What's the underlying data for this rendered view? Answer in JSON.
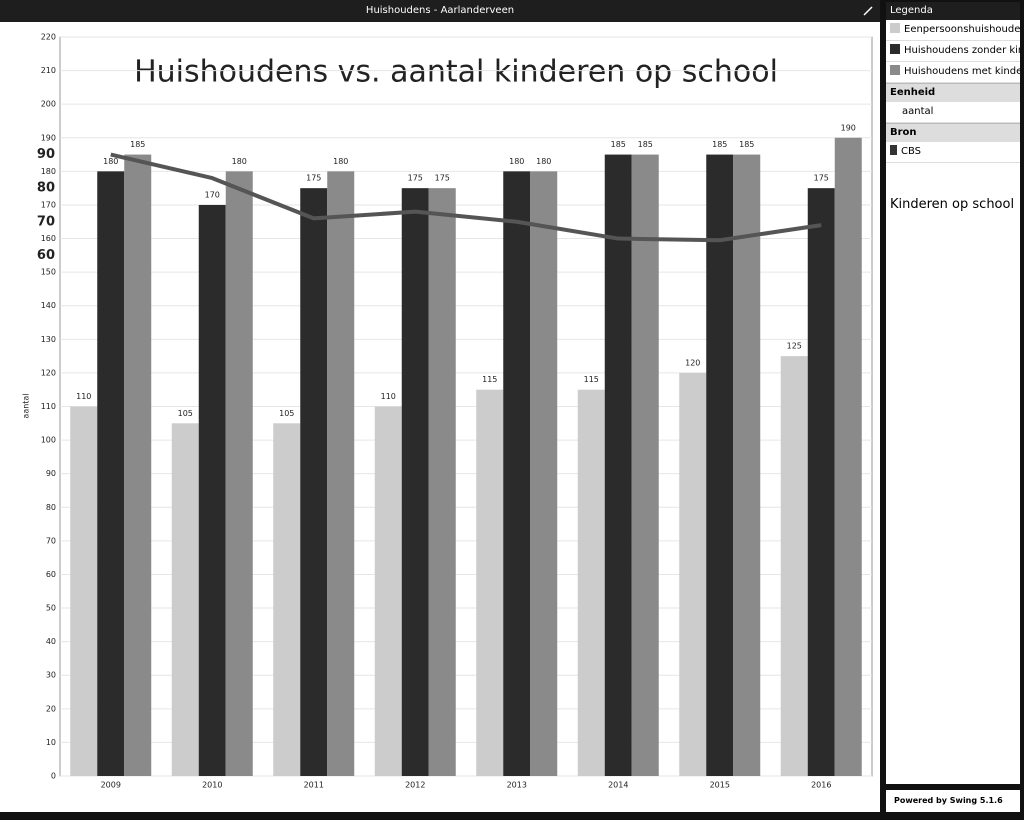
{
  "window": {
    "title": "Huishoudens - Aarlanderveen"
  },
  "chart_data": {
    "type": "bar",
    "title": "Huishoudens vs. aantal kinderen op school",
    "y_label": "aantal",
    "categories": [
      "2009",
      "2010",
      "2011",
      "2012",
      "2013",
      "2014",
      "2015",
      "2016"
    ],
    "series": [
      {
        "name": "Eenpersoonshuishouden",
        "color": "#cccccc",
        "values": [
          110,
          105,
          105,
          110,
          115,
          115,
          120,
          125
        ]
      },
      {
        "name": "Huishoudens zonder kinderen",
        "color": "#2b2b2b",
        "values": [
          180,
          170,
          175,
          175,
          180,
          185,
          185,
          175
        ]
      },
      {
        "name": "Huishoudens met kinderen",
        "color": "#8a8a8a",
        "values": [
          185,
          180,
          180,
          175,
          180,
          185,
          185,
          190
        ]
      },
      {
        "name": "Kinderen op school",
        "color": "#555555",
        "type": "line",
        "axis": "y2",
        "values": [
          90,
          83,
          71,
          73,
          70,
          65,
          64.5,
          69
        ]
      }
    ],
    "ylim": [
      0,
      220
    ],
    "yticks": [
      0,
      10,
      20,
      30,
      40,
      50,
      60,
      70,
      80,
      90,
      100,
      110,
      120,
      130,
      140,
      150,
      160,
      170,
      180,
      190,
      200,
      210,
      220
    ],
    "y2lim": [
      -95,
      125
    ],
    "y2ticks": [
      60,
      70,
      80,
      90
    ],
    "grid": true
  },
  "sidebar": {
    "legend_title": "Legenda",
    "unit_title": "Eenheid",
    "unit": "aantal",
    "source_title": "Bron",
    "source": "CBS",
    "footer": "Powered by Swing 5.1.6"
  }
}
